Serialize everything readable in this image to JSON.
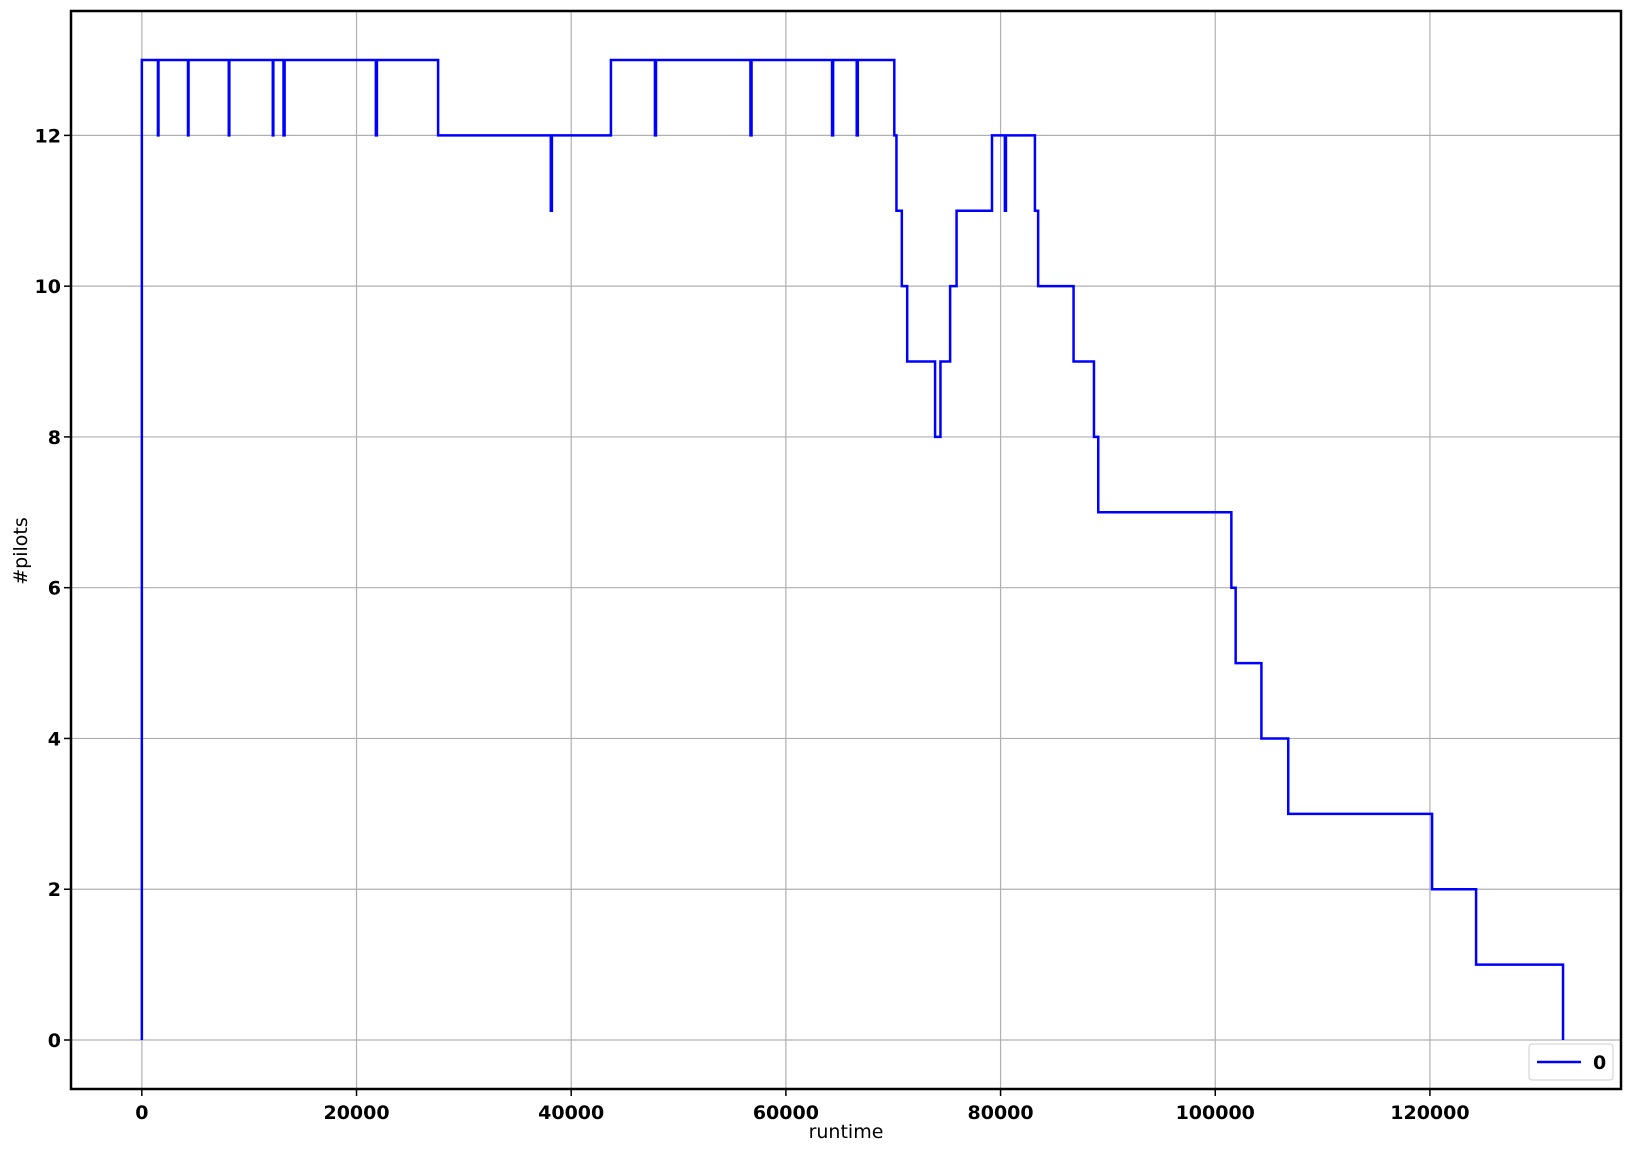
{
  "chart_data": {
    "type": "line",
    "title": "",
    "xlabel": "runtime",
    "ylabel": "#pilots",
    "xlim": [
      -6600,
      137800
    ],
    "ylim": [
      -0.65,
      13.65
    ],
    "xticks": [
      0,
      20000,
      40000,
      60000,
      80000,
      100000,
      120000
    ],
    "xtick_labels": [
      "0",
      "20000",
      "40000",
      "60000",
      "80000",
      "100000",
      "120000"
    ],
    "yticks": [
      0,
      2,
      4,
      6,
      8,
      10,
      12
    ],
    "ytick_labels": [
      "0",
      "2",
      "4",
      "6",
      "8",
      "10",
      "12"
    ],
    "grid": true,
    "legend": {
      "position": "bottom-right",
      "entries": [
        "0"
      ]
    },
    "series": [
      {
        "name": "0",
        "color": "#0000ff",
        "drawstyle": "steps-post",
        "points": [
          [
            0,
            0
          ],
          [
            0,
            13
          ],
          [
            1500,
            12
          ],
          [
            1550,
            13
          ],
          [
            4300,
            12
          ],
          [
            4350,
            13
          ],
          [
            8100,
            12
          ],
          [
            8150,
            13
          ],
          [
            12200,
            12
          ],
          [
            12250,
            13
          ],
          [
            13200,
            12
          ],
          [
            13300,
            13
          ],
          [
            21800,
            12
          ],
          [
            21900,
            13
          ],
          [
            27600,
            12
          ],
          [
            38100,
            11
          ],
          [
            38200,
            12
          ],
          [
            43700,
            13
          ],
          [
            47800,
            12
          ],
          [
            47900,
            13
          ],
          [
            56700,
            12
          ],
          [
            56800,
            13
          ],
          [
            64300,
            12
          ],
          [
            64400,
            13
          ],
          [
            66600,
            12
          ],
          [
            66700,
            13
          ],
          [
            70100,
            12
          ],
          [
            70300,
            11
          ],
          [
            70800,
            10
          ],
          [
            71300,
            9
          ],
          [
            73900,
            8
          ],
          [
            74400,
            9
          ],
          [
            75300,
            10
          ],
          [
            75900,
            11
          ],
          [
            79200,
            12
          ],
          [
            80400,
            11
          ],
          [
            80500,
            12
          ],
          [
            83200,
            11
          ],
          [
            83500,
            10
          ],
          [
            86800,
            9
          ],
          [
            88700,
            8
          ],
          [
            89100,
            7
          ],
          [
            101500,
            6
          ],
          [
            101900,
            5
          ],
          [
            104300,
            4
          ],
          [
            106800,
            3
          ],
          [
            120200,
            2
          ],
          [
            124300,
            1
          ],
          [
            132400,
            0
          ]
        ]
      }
    ]
  },
  "colors": {
    "series": "#0000ff",
    "grid": "#b0b0b0",
    "frame": "#000000"
  }
}
